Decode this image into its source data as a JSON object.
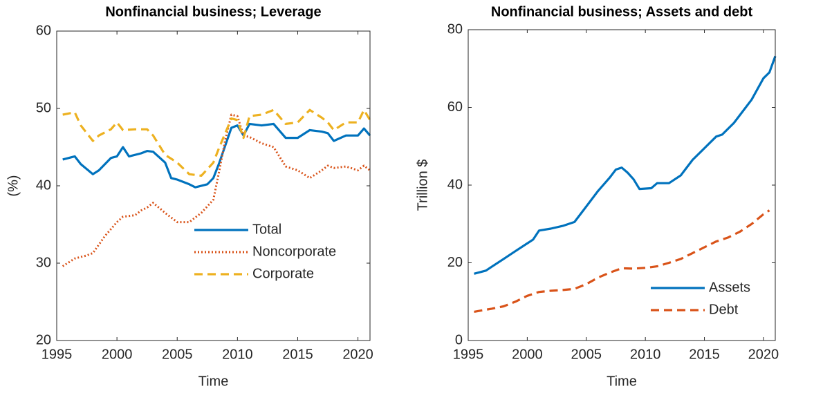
{
  "chart_data": [
    {
      "type": "line",
      "title": "Nonfinancial business; Leverage",
      "xlabel": "Time",
      "ylabel": "(%)",
      "xlim": [
        1995,
        2021
      ],
      "xticks": [
        1995,
        2000,
        2005,
        2010,
        2015,
        2020
      ],
      "ylim": [
        20,
        60
      ],
      "yticks": [
        20,
        30,
        40,
        50,
        60
      ],
      "legend": "lower right",
      "series": [
        {
          "name": "Total",
          "color": "#0072bd",
          "style": "solid",
          "x": [
            1995.5,
            1996.5,
            1997,
            1998,
            1998.5,
            1999.5,
            2000,
            2000.5,
            2001,
            2002,
            2002.5,
            2003,
            2004,
            2004.5,
            2005,
            2006,
            2006.5,
            2007.5,
            2008,
            2008.5,
            2009.5,
            2010,
            2010.5,
            2011,
            2012,
            2013,
            2014,
            2015,
            2016,
            2017,
            2017.5,
            2018,
            2019,
            2020,
            2020.5,
            2021
          ],
          "values": [
            43.4,
            43.8,
            42.8,
            41.5,
            42,
            43.6,
            43.8,
            45,
            43.8,
            44.2,
            44.5,
            44.4,
            43,
            41,
            40.8,
            40.2,
            39.8,
            40.2,
            41,
            43,
            47.5,
            47.8,
            46.5,
            48,
            47.8,
            48,
            46.2,
            46.2,
            47.2,
            47,
            46.8,
            45.8,
            46.5,
            46.5,
            47.4,
            46.5
          ]
        },
        {
          "name": "Noncorporate",
          "color": "#d95319",
          "style": "dotted",
          "x": [
            1995.5,
            1996.5,
            1997.5,
            1998,
            1999,
            2000,
            2000.5,
            2001.5,
            2002,
            2002.5,
            2003,
            2004,
            2005,
            2006,
            2007,
            2008,
            2008.5,
            2009,
            2009.5,
            2010,
            2010.5,
            2011,
            2012,
            2013,
            2014,
            2015,
            2016,
            2017,
            2017.5,
            2018,
            2019,
            2020,
            2020.5,
            2021
          ],
          "values": [
            29.6,
            30.6,
            31,
            31.3,
            33.5,
            35.3,
            36,
            36.2,
            36.8,
            37.2,
            37.8,
            36.5,
            35.3,
            35.3,
            36.5,
            38.2,
            42,
            46,
            49.2,
            49,
            46.5,
            46.3,
            45.5,
            45,
            42.5,
            42,
            41,
            42,
            42.6,
            42.3,
            42.5,
            42,
            42.6,
            42
          ]
        },
        {
          "name": "Corporate",
          "color": "#edb120",
          "style": "dashed",
          "x": [
            1995.5,
            1996.5,
            1997,
            1998,
            1998.5,
            1999.5,
            2000,
            2000.5,
            2001.5,
            2002.5,
            2003,
            2004,
            2005,
            2006,
            2007,
            2008,
            2008.5,
            2009.5,
            2010,
            2010.5,
            2011,
            2012,
            2013,
            2014,
            2015,
            2016,
            2017,
            2017.5,
            2018,
            2019,
            2020,
            2020.5,
            2021
          ],
          "values": [
            49.2,
            49.5,
            47.8,
            45.8,
            46.5,
            47.3,
            48.2,
            47.2,
            47.3,
            47.3,
            46.5,
            44,
            43,
            41.5,
            41.3,
            43,
            45,
            48.7,
            48.5,
            46.2,
            49,
            49.2,
            49.8,
            48,
            48.2,
            49.8,
            48.8,
            48.2,
            47.2,
            48.2,
            48.2,
            49.8,
            48.5
          ]
        }
      ]
    },
    {
      "type": "line",
      "title": "Nonfinancial business; Assets and debt",
      "xlabel": "Time",
      "ylabel": "Trillion $",
      "xlim": [
        1995,
        2021
      ],
      "xticks": [
        1995,
        2000,
        2005,
        2010,
        2015,
        2020
      ],
      "ylim": [
        0,
        80
      ],
      "yticks": [
        0,
        20,
        40,
        60,
        80
      ],
      "legend": "lower right",
      "series": [
        {
          "name": "Assets",
          "color": "#0072bd",
          "style": "solid",
          "x": [
            1995.5,
            1996.5,
            1997,
            1998,
            1999,
            2000,
            2000.5,
            2001,
            2002,
            2003,
            2004,
            2005,
            2006,
            2007,
            2007.5,
            2008,
            2008.5,
            2009,
            2009.5,
            2010.5,
            2011,
            2012,
            2013,
            2014,
            2015,
            2016,
            2016.5,
            2017.5,
            2018.5,
            2019,
            2020,
            2020.5,
            2021
          ],
          "values": [
            17.2,
            18,
            19,
            21,
            23,
            25,
            26,
            28.3,
            28.8,
            29.5,
            30.5,
            34.5,
            38.5,
            42,
            44,
            44.5,
            43.2,
            41.5,
            39,
            39.2,
            40.5,
            40.5,
            42.5,
            46.5,
            49.5,
            52.5,
            53,
            56,
            60,
            62,
            67.5,
            69,
            73.2
          ]
        },
        {
          "name": "Debt",
          "color": "#d95319",
          "style": "dashed",
          "x": [
            1995.5,
            1997,
            1998,
            1999,
            2000,
            2001,
            2002,
            2003,
            2004,
            2005,
            2006,
            2007,
            2008,
            2009,
            2010,
            2011,
            2012,
            2013,
            2014,
            2015,
            2016,
            2017,
            2018,
            2019,
            2020,
            2020.5
          ],
          "values": [
            7.4,
            8.2,
            8.8,
            10,
            11.5,
            12.5,
            12.8,
            13,
            13.3,
            14.5,
            16.2,
            17.5,
            18.6,
            18.5,
            18.7,
            19.1,
            20,
            21,
            22.5,
            24,
            25.5,
            26.5,
            28,
            30,
            32.5,
            33.5
          ]
        }
      ]
    }
  ]
}
